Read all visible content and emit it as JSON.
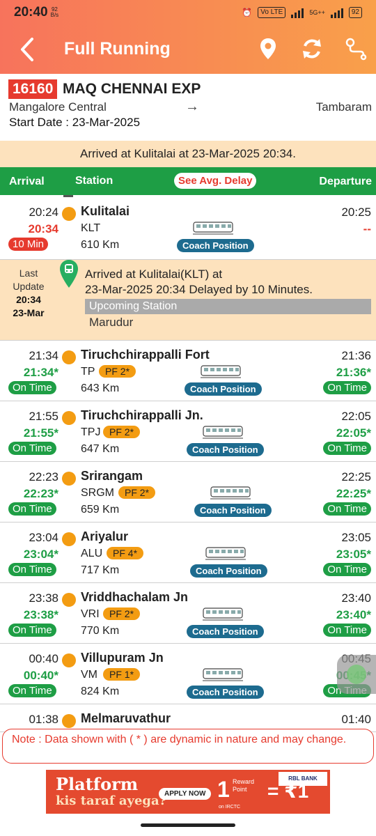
{
  "status_bar": {
    "time": "20:40",
    "speed": "92",
    "speed_unit": "B/s",
    "volte": "Vo LTE",
    "network": "5G++",
    "battery": "92"
  },
  "app_bar": {
    "title": "Full Running"
  },
  "train": {
    "number": "16160",
    "name": "MAQ CHENNAI EXP",
    "from": "Mangalore Central",
    "arrow": "→",
    "to": "Tambaram",
    "start_date": "Start Date : 23-Mar-2025"
  },
  "arrived_banner": "Arrived at Kulitalai at 23-Mar-2025 20:34.",
  "columns": {
    "arrival": "Arrival",
    "station": "Station",
    "avg_delay": "See Avg. Delay",
    "departure": "Departure"
  },
  "coach_position_label": "Coach Position",
  "last_update": {
    "label_line1": "Last",
    "label_line2": "Update",
    "time": "20:34",
    "date": "23-Mar",
    "message_line1": "Arrived at Kulitalai(KLT) at",
    "message_line2": "23-Mar-2025 20:34 Delayed by 10 Minutes.",
    "upcoming_label": "Upcoming Station",
    "upcoming_station": "Marudur"
  },
  "stations": [
    {
      "name": "Kulitalai",
      "code": "KLT",
      "pf": "",
      "km": "610 Km",
      "sched_arr": "20:24",
      "act_arr": "20:34",
      "arr_status": "10 Min",
      "sched_dep": "20:25",
      "act_dep": "--",
      "dep_status": ""
    },
    {
      "name": "Tiruchchirappalli Fort",
      "code": "TP",
      "pf": "PF 2*",
      "km": "643 Km",
      "sched_arr": "21:34",
      "act_arr": "21:34*",
      "arr_status": "On Time",
      "sched_dep": "21:36",
      "act_dep": "21:36*",
      "dep_status": "On Time"
    },
    {
      "name": "Tiruchchirappalli Jn.",
      "code": "TPJ",
      "pf": "PF 2*",
      "km": "647 Km",
      "sched_arr": "21:55",
      "act_arr": "21:55*",
      "arr_status": "On Time",
      "sched_dep": "22:05",
      "act_dep": "22:05*",
      "dep_status": "On Time"
    },
    {
      "name": "Srirangam",
      "code": "SRGM",
      "pf": "PF 2*",
      "km": "659 Km",
      "sched_arr": "22:23",
      "act_arr": "22:23*",
      "arr_status": "On Time",
      "sched_dep": "22:25",
      "act_dep": "22:25*",
      "dep_status": "On Time"
    },
    {
      "name": "Ariyalur",
      "code": "ALU",
      "pf": "PF 4*",
      "km": "717 Km",
      "sched_arr": "23:04",
      "act_arr": "23:04*",
      "arr_status": "On Time",
      "sched_dep": "23:05",
      "act_dep": "23:05*",
      "dep_status": "On Time"
    },
    {
      "name": "Vriddhachalam Jn",
      "code": "VRI",
      "pf": "PF 2*",
      "km": "770 Km",
      "sched_arr": "23:38",
      "act_arr": "23:38*",
      "arr_status": "On Time",
      "sched_dep": "23:40",
      "act_dep": "23:40*",
      "dep_status": "On Time"
    },
    {
      "name": "Villupuram Jn",
      "code": "VM",
      "pf": "PF 1*",
      "km": "824 Km",
      "sched_arr": "00:40",
      "act_arr": "00:40*",
      "arr_status": "On Time",
      "sched_dep": "00:45",
      "act_dep": "00:45*",
      "dep_status": "On Time"
    },
    {
      "name": "Melmaruvathur",
      "code": "",
      "pf": "",
      "km": "",
      "sched_arr": "01:38",
      "act_arr": "",
      "arr_status": "",
      "sched_dep": "01:40",
      "act_dep": "",
      "dep_status": ""
    }
  ],
  "note": "Note : Data shown with ( * ) are dynamic in nature and may change.",
  "ad": {
    "headline": "Platform",
    "subline": "kis taraf ayega?",
    "cta": "APPLY NOW",
    "reward_number": "1",
    "reward_text": "Reward Point",
    "equals": "= ₹1",
    "bank": "RBL BANK",
    "source": "on IRCTC"
  },
  "colors": {
    "accent": "#f7735c",
    "green": "#1e9e45",
    "red": "#e63a2e",
    "orange": "#f39c12",
    "banner": "#fde2bd"
  }
}
